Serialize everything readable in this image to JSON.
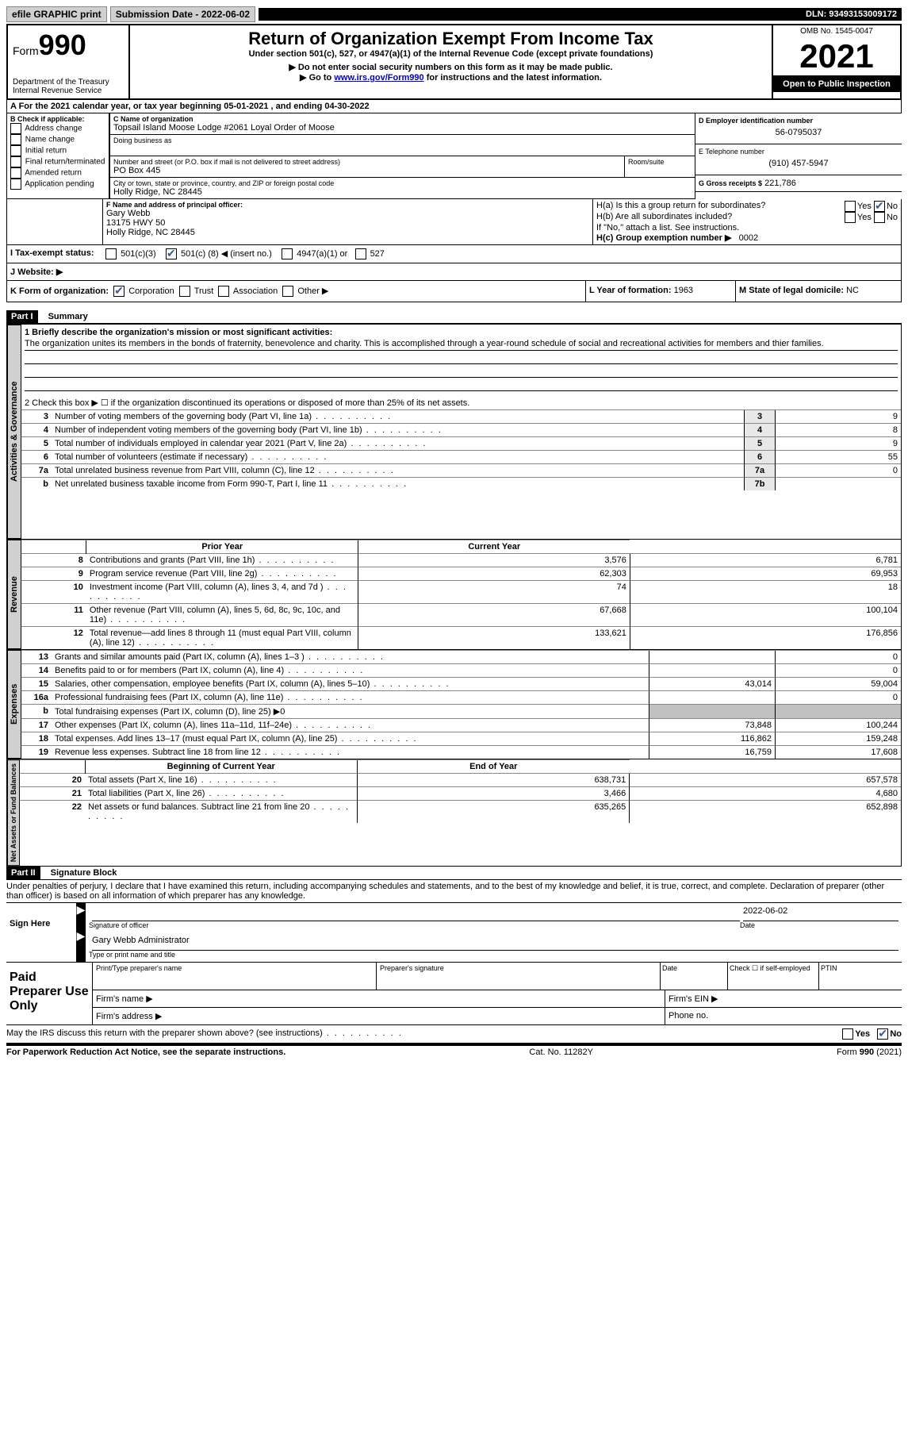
{
  "topbar": {
    "efile": "efile GRAPHIC print",
    "submission": "Submission Date - 2022-06-02",
    "dln": "DLN: 93493153009172"
  },
  "header": {
    "form_label": "Form",
    "form_num": "990",
    "dept": "Department of the Treasury",
    "irs": "Internal Revenue Service",
    "title": "Return of Organization Exempt From Income Tax",
    "subtitle": "Under section 501(c), 527, or 4947(a)(1) of the Internal Revenue Code (except private foundations)",
    "note1": "▶ Do not enter social security numbers on this form as it may be made public.",
    "note2_pre": "▶ Go to ",
    "note2_link": "www.irs.gov/Form990",
    "note2_post": " for instructions and the latest information.",
    "omb": "OMB No. 1545-0047",
    "year": "2021",
    "open": "Open to Public Inspection"
  },
  "period": {
    "text_a": "A For the 2021 calendar year, or tax year beginning ",
    "begin": "05-01-2021",
    "text_b": " , and ending ",
    "end": "04-30-2022"
  },
  "boxB": {
    "label": "B Check if applicable:",
    "opts": [
      "Address change",
      "Name change",
      "Initial return",
      "Final return/terminated",
      "Amended return",
      "Application pending"
    ]
  },
  "boxC": {
    "name_label": "C Name of organization",
    "name": "Topsail Island Moose Lodge #2061 Loyal Order of Moose",
    "dba_label": "Doing business as",
    "street_label": "Number and street (or P.O. box if mail is not delivered to street address)",
    "room_label": "Room/suite",
    "street": "PO Box 445",
    "city_label": "City or town, state or province, country, and ZIP or foreign postal code",
    "city": "Holly Ridge, NC  28445"
  },
  "boxD": {
    "label": "D Employer identification number",
    "value": "56-0795037"
  },
  "boxE": {
    "label": "E Telephone number",
    "value": "(910) 457-5947"
  },
  "boxG": {
    "label": "G Gross receipts $",
    "value": "221,786"
  },
  "boxF": {
    "label": "F Name and address of principal officer:",
    "name": "Gary Webb",
    "addr1": "13175 HWY 50",
    "addr2": "Holly Ridge, NC  28445"
  },
  "boxH": {
    "a": "H(a) Is this a group return for subordinates?",
    "b": "H(b) Are all subordinates included?",
    "b_note": "If \"No,\" attach a list. See instructions.",
    "c": "H(c) Group exemption number ▶",
    "c_val": "0002",
    "yes": "Yes",
    "no": "No"
  },
  "boxI": {
    "label": "I Tax-exempt status:",
    "opt1": "501(c)(3)",
    "opt2_pre": "501(c) (",
    "opt2_num": "8",
    "opt2_post": ") ◀ (insert no.)",
    "opt3": "4947(a)(1) or",
    "opt4": "527"
  },
  "boxJ": {
    "label": "J Website: ▶"
  },
  "boxK": {
    "label": "K Form of organization:",
    "opts": [
      "Corporation",
      "Trust",
      "Association",
      "Other ▶"
    ]
  },
  "boxL": {
    "label": "L Year of formation:",
    "value": "1963"
  },
  "boxM": {
    "label": "M State of legal domicile:",
    "value": "NC"
  },
  "part1": {
    "header": "Part I",
    "title": "Summary",
    "tabs": [
      "Activities & Governance",
      "Revenue",
      "Expenses",
      "Net Assets or Fund Balances"
    ],
    "line1_label": "1 Briefly describe the organization's mission or most significant activities:",
    "line1_text": "The organization unites its members in the bonds of fraternity, benevolence and charity. This is accomplished through a year-round schedule of social and recreational activities for members and thier families.",
    "line2": "2 Check this box ▶ ☐ if the organization discontinued its operations or disposed of more than 25% of its net assets.",
    "prior_year": "Prior Year",
    "current_year": "Current Year",
    "beg_year": "Beginning of Current Year",
    "end_year": "End of Year",
    "lines_top": [
      {
        "n": "3",
        "t": "Number of voting members of the governing body (Part VI, line 1a)",
        "box": "3",
        "v": "9"
      },
      {
        "n": "4",
        "t": "Number of independent voting members of the governing body (Part VI, line 1b)",
        "box": "4",
        "v": "8"
      },
      {
        "n": "5",
        "t": "Total number of individuals employed in calendar year 2021 (Part V, line 2a)",
        "box": "5",
        "v": "9"
      },
      {
        "n": "6",
        "t": "Total number of volunteers (estimate if necessary)",
        "box": "6",
        "v": "55"
      },
      {
        "n": "7a",
        "t": "Total unrelated business revenue from Part VIII, column (C), line 12",
        "box": "7a",
        "v": "0"
      },
      {
        "n": "b",
        "t": "Net unrelated business taxable income from Form 990-T, Part I, line 11",
        "box": "7b",
        "v": ""
      }
    ],
    "lines_rev": [
      {
        "n": "8",
        "t": "Contributions and grants (Part VIII, line 1h)",
        "py": "3,576",
        "cy": "6,781"
      },
      {
        "n": "9",
        "t": "Program service revenue (Part VIII, line 2g)",
        "py": "62,303",
        "cy": "69,953"
      },
      {
        "n": "10",
        "t": "Investment income (Part VIII, column (A), lines 3, 4, and 7d )",
        "py": "74",
        "cy": "18"
      },
      {
        "n": "11",
        "t": "Other revenue (Part VIII, column (A), lines 5, 6d, 8c, 9c, 10c, and 11e)",
        "py": "67,668",
        "cy": "100,104"
      },
      {
        "n": "12",
        "t": "Total revenue—add lines 8 through 11 (must equal Part VIII, column (A), line 12)",
        "py": "133,621",
        "cy": "176,856"
      }
    ],
    "lines_exp": [
      {
        "n": "13",
        "t": "Grants and similar amounts paid (Part IX, column (A), lines 1–3 )",
        "py": "",
        "cy": "0"
      },
      {
        "n": "14",
        "t": "Benefits paid to or for members (Part IX, column (A), line 4)",
        "py": "",
        "cy": "0"
      },
      {
        "n": "15",
        "t": "Salaries, other compensation, employee benefits (Part IX, column (A), lines 5–10)",
        "py": "43,014",
        "cy": "59,004"
      },
      {
        "n": "16a",
        "t": "Professional fundraising fees (Part IX, column (A), line 11e)",
        "py": "",
        "cy": "0"
      },
      {
        "n": "b",
        "t": "Total fundraising expenses (Part IX, column (D), line 25) ▶0",
        "shade": true
      },
      {
        "n": "17",
        "t": "Other expenses (Part IX, column (A), lines 11a–11d, 11f–24e)",
        "py": "73,848",
        "cy": "100,244"
      },
      {
        "n": "18",
        "t": "Total expenses. Add lines 13–17 (must equal Part IX, column (A), line 25)",
        "py": "116,862",
        "cy": "159,248"
      },
      {
        "n": "19",
        "t": "Revenue less expenses. Subtract line 18 from line 12",
        "py": "16,759",
        "cy": "17,608"
      }
    ],
    "lines_net": [
      {
        "n": "20",
        "t": "Total assets (Part X, line 16)",
        "py": "638,731",
        "cy": "657,578"
      },
      {
        "n": "21",
        "t": "Total liabilities (Part X, line 26)",
        "py": "3,466",
        "cy": "4,680"
      },
      {
        "n": "22",
        "t": "Net assets or fund balances. Subtract line 21 from line 20",
        "py": "635,265",
        "cy": "652,898"
      }
    ]
  },
  "part2": {
    "header": "Part II",
    "title": "Signature Block",
    "declaration": "Under penalties of perjury, I declare that I have examined this return, including accompanying schedules and statements, and to the best of my knowledge and belief, it is true, correct, and complete. Declaration of preparer (other than officer) is based on all information of which preparer has any knowledge.",
    "sign_here": "Sign Here",
    "sig_officer": "Signature of officer",
    "sig_date_val": "2022-06-02",
    "date": "Date",
    "sig_name": "Gary Webb  Administrator",
    "name_label": "Type or print name and title",
    "paid": "Paid Preparer Use Only",
    "prep_name": "Print/Type preparer's name",
    "prep_sig": "Preparer's signature",
    "prep_date": "Date",
    "prep_check": "Check ☐ if self-employed",
    "ptin": "PTIN",
    "firm_name": "Firm's name ▶",
    "firm_ein": "Firm's EIN ▶",
    "firm_addr": "Firm's address ▶",
    "phone": "Phone no.",
    "discuss": "May the IRS discuss this return with the preparer shown above? (see instructions)",
    "yes": "Yes",
    "no": "No"
  },
  "footer": {
    "pra": "For Paperwork Reduction Act Notice, see the separate instructions.",
    "cat": "Cat. No. 11282Y",
    "form": "Form 990 (2021)"
  }
}
